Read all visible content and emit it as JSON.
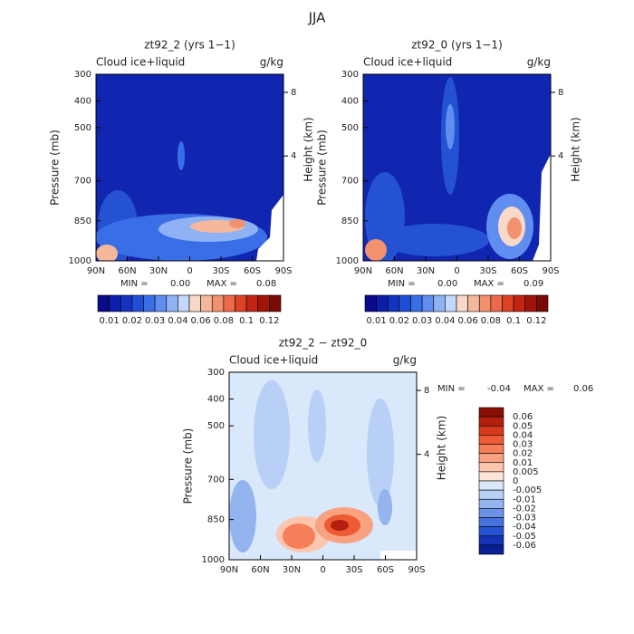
{
  "title": "JJA",
  "chart_data": [
    {
      "type": "contour",
      "title": "zt92_2 (yrs 1−1)",
      "left_label": "Cloud ice+liquid",
      "right_label": "g/kg",
      "ylabel": "Pressure (mb)",
      "y2label": "Height (km)",
      "xlim": [
        90,
        -90
      ],
      "xticks": [
        {
          "value": 90,
          "label": "90N"
        },
        {
          "value": 60,
          "label": "60N"
        },
        {
          "value": 30,
          "label": "30N"
        },
        0,
        {
          "value": -30,
          "label": "30S"
        },
        {
          "value": -60,
          "label": "60S"
        },
        {
          "value": -90,
          "label": "90S"
        }
      ],
      "ylim": [
        1000,
        300
      ],
      "yticks": [
        300,
        400,
        500,
        700,
        850,
        1000
      ],
      "y2ticks": [
        4,
        8
      ],
      "min_text": "MIN =",
      "min": {
        "value": 0,
        "label": "0.00"
      },
      "max_text": "MAX =",
      "max": {
        "value": 0.08,
        "label": "0.08"
      },
      "colorbar": {
        "orientation": "horizontal",
        "colors": [
          "#0a0a8c",
          "#0d1ea8",
          "#1433c0",
          "#1f4fd8",
          "#3a6ee6",
          "#5f8ef0",
          "#8fb2f5",
          "#c3d8fa",
          "#f8d8c8",
          "#f5b89c",
          "#f29170",
          "#ec6a4a",
          "#dd4126",
          "#c42414",
          "#a0140a",
          "#7a0a05"
        ],
        "ticks": [
          0.01,
          0.02,
          0.03,
          0.04,
          0.06,
          0.08,
          0.1,
          0.12
        ]
      }
    },
    {
      "type": "contour",
      "title": "zt92_0 (yrs 1−1)",
      "left_label": "Cloud ice+liquid",
      "right_label": "g/kg",
      "ylabel": "Pressure (mb)",
      "y2label": "Height (km)",
      "xlim": [
        90,
        -90
      ],
      "xticks": [
        {
          "value": 90,
          "label": "90N"
        },
        {
          "value": 60,
          "label": "60N"
        },
        {
          "value": 30,
          "label": "30N"
        },
        0,
        {
          "value": -30,
          "label": "30S"
        },
        {
          "value": -60,
          "label": "60S"
        },
        {
          "value": -90,
          "label": "90S"
        }
      ],
      "ylim": [
        1000,
        300
      ],
      "yticks": [
        300,
        400,
        500,
        700,
        850,
        1000
      ],
      "y2ticks": [
        4,
        8
      ],
      "min_text": "MIN =",
      "min": {
        "value": 0,
        "label": "0.00"
      },
      "max_text": "MAX =",
      "max": {
        "value": 0.09,
        "label": "0.09"
      },
      "colorbar": {
        "orientation": "horizontal",
        "colors": [
          "#0a0a8c",
          "#0d1ea8",
          "#1433c0",
          "#1f4fd8",
          "#3a6ee6",
          "#5f8ef0",
          "#8fb2f5",
          "#c3d8fa",
          "#f8d8c8",
          "#f5b89c",
          "#f29170",
          "#ec6a4a",
          "#dd4126",
          "#c42414",
          "#a0140a",
          "#7a0a05"
        ],
        "ticks": [
          0.01,
          0.02,
          0.03,
          0.04,
          0.06,
          0.08,
          0.1,
          0.12
        ]
      }
    },
    {
      "type": "contour",
      "title": "zt92_2 − zt92_0",
      "left_label": "Cloud ice+liquid",
      "right_label": "g/kg",
      "ylabel": "Pressure (mb)",
      "y2label": "Height (km)",
      "xlim": [
        90,
        -90
      ],
      "xticks": [
        {
          "value": 90,
          "label": "90N"
        },
        {
          "value": 60,
          "label": "60N"
        },
        {
          "value": 30,
          "label": "30N"
        },
        0,
        {
          "value": -30,
          "label": "30S"
        },
        {
          "value": -60,
          "label": "60S"
        },
        {
          "value": -90,
          "label": "90S"
        }
      ],
      "ylim": [
        1000,
        300
      ],
      "yticks": [
        300,
        400,
        500,
        700,
        850,
        1000
      ],
      "y2ticks": [
        4,
        8
      ],
      "min_text": "MIN =",
      "min": {
        "value": -0.04,
        "label": "-0.04"
      },
      "max_text": "MAX =",
      "max": {
        "value": 0.06,
        "label": "0.06"
      },
      "colorbar": {
        "orientation": "vertical",
        "colors": [
          "#8a0e06",
          "#b3200f",
          "#d8381b",
          "#ee5a33",
          "#f57f58",
          "#f8a282",
          "#fbc6ad",
          "#fde6d8",
          "#d9e8fb",
          "#b8d0f5",
          "#93b4ee",
          "#6b93e6",
          "#4672de",
          "#2552d2",
          "#1433b6",
          "#0a1f92"
        ],
        "ticks": [
          0.06,
          0.05,
          0.04,
          0.03,
          0.02,
          0.01,
          0.005,
          0,
          -0.005,
          -0.01,
          -0.02,
          -0.03,
          -0.04,
          -0.05,
          -0.06
        ]
      }
    }
  ]
}
